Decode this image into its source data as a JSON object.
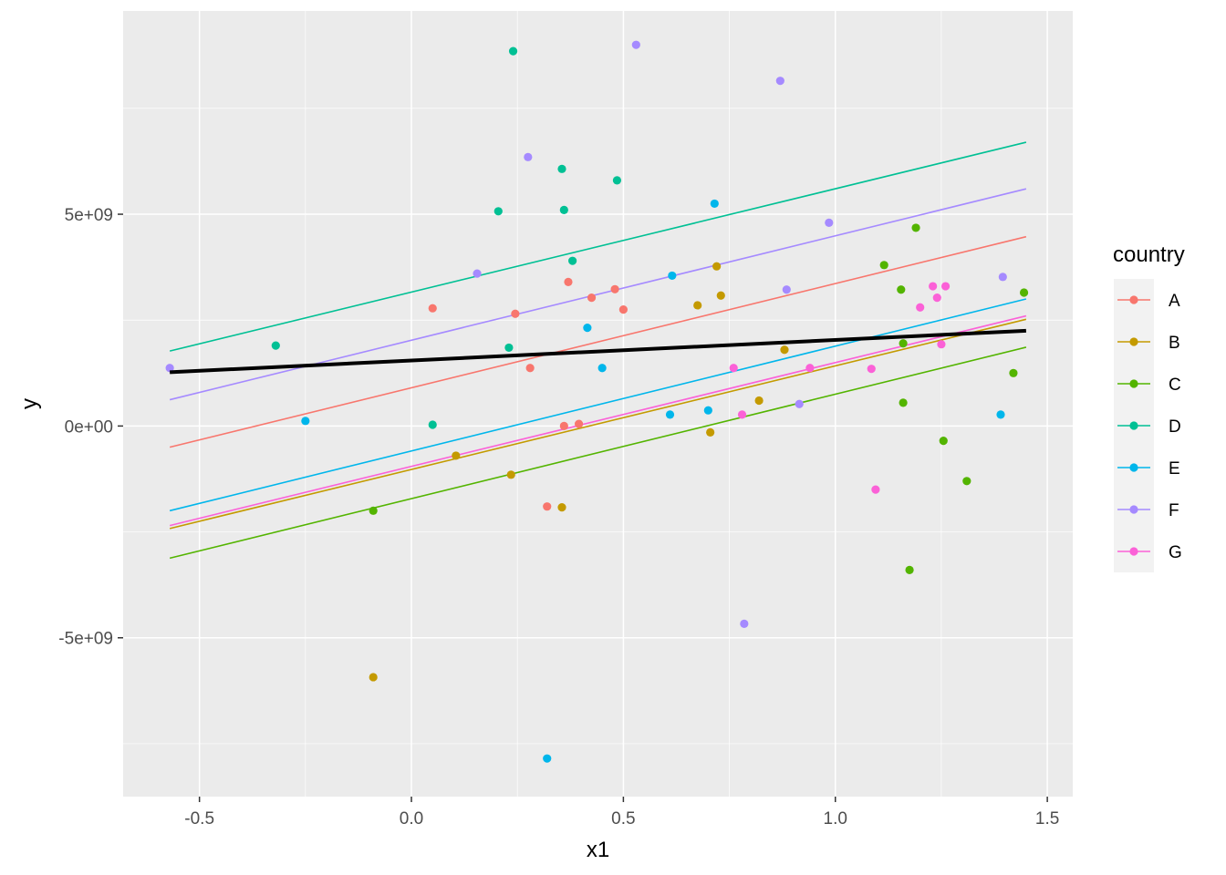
{
  "chart_data": {
    "type": "scatter",
    "xlabel": "x1",
    "ylabel": "y",
    "xlim": [
      -0.68,
      1.56
    ],
    "ylim": [
      -8750000000.0,
      9800000000.0
    ],
    "x_ticks": [
      -0.5,
      0.0,
      0.5,
      1.0,
      1.5
    ],
    "x_tick_labels": [
      "-0.5",
      "0.0",
      "0.5",
      "1.0",
      "1.5"
    ],
    "y_ticks": [
      -5000000000.0,
      0,
      5000000000.0
    ],
    "y_tick_labels": [
      "-5e+09",
      "0e+00",
      "5e+09"
    ],
    "grid": true,
    "legend": {
      "title": "country",
      "placement": "right"
    },
    "series": [
      {
        "name": "A",
        "color": "#F8766D",
        "points": [
          [
            0.05,
            2780000000.0
          ],
          [
            0.245,
            2650000000.0
          ],
          [
            0.28,
            1370000000.0
          ],
          [
            0.32,
            -1900000000.0
          ],
          [
            0.36,
            0.0
          ],
          [
            0.37,
            3400000000.0
          ],
          [
            0.395,
            50000000.0
          ],
          [
            0.425,
            3030000000.0
          ],
          [
            0.48,
            3230000000.0
          ],
          [
            0.5,
            2750000000.0
          ]
        ],
        "fit": [
          [
            -0.57,
            -500000000.0
          ],
          [
            1.45,
            4470000000.0
          ]
        ]
      },
      {
        "name": "B",
        "color": "#C49A00",
        "points": [
          [
            -0.09,
            -5930000000.0
          ],
          [
            0.105,
            -700000000.0
          ],
          [
            0.235,
            -1150000000.0
          ],
          [
            0.355,
            -1920000000.0
          ],
          [
            0.675,
            2850000000.0
          ],
          [
            0.705,
            -150000000.0
          ],
          [
            0.72,
            3770000000.0
          ],
          [
            0.73,
            3080000000.0
          ],
          [
            0.82,
            600000000.0
          ],
          [
            0.88,
            1800000000.0
          ]
        ],
        "fit": [
          [
            -0.57,
            -2420000000.0
          ],
          [
            1.45,
            2520000000.0
          ]
        ]
      },
      {
        "name": "C",
        "color": "#53B400",
        "points": [
          [
            -0.09,
            -2000000000.0
          ],
          [
            1.115,
            3800000000.0
          ],
          [
            1.155,
            3220000000.0
          ],
          [
            1.16,
            1950000000.0
          ],
          [
            1.16,
            550000000.0
          ],
          [
            1.175,
            -3400000000.0
          ],
          [
            1.19,
            4680000000.0
          ],
          [
            1.255,
            -350000000.0
          ],
          [
            1.31,
            -1300000000.0
          ],
          [
            1.42,
            1250000000.0
          ],
          [
            1.445,
            3150000000.0
          ]
        ],
        "fit": [
          [
            -0.57,
            -3120000000.0
          ],
          [
            1.45,
            1860000000.0
          ]
        ]
      },
      {
        "name": "D",
        "color": "#00C094",
        "points": [
          [
            -0.32,
            1900000000.0
          ],
          [
            0.05,
            30000000.0
          ],
          [
            0.205,
            5070000000.0
          ],
          [
            0.23,
            1850000000.0
          ],
          [
            0.24,
            8850000000.0
          ],
          [
            0.355,
            6070000000.0
          ],
          [
            0.36,
            5100000000.0
          ],
          [
            0.38,
            3900000000.0
          ],
          [
            0.485,
            5800000000.0
          ]
        ],
        "fit": [
          [
            -0.57,
            1770000000.0
          ],
          [
            1.45,
            6700000000.0
          ]
        ]
      },
      {
        "name": "E",
        "color": "#00B6EB",
        "points": [
          [
            -0.25,
            120000000.0
          ],
          [
            0.32,
            -7850000000.0
          ],
          [
            0.415,
            2320000000.0
          ],
          [
            0.45,
            1370000000.0
          ],
          [
            0.61,
            270000000.0
          ],
          [
            0.615,
            3550000000.0
          ],
          [
            0.7,
            370000000.0
          ],
          [
            0.715,
            5250000000.0
          ],
          [
            1.39,
            270000000.0
          ]
        ],
        "fit": [
          [
            -0.57,
            -2000000000.0
          ],
          [
            1.45,
            3000000000.0
          ]
        ]
      },
      {
        "name": "F",
        "color": "#A58AFF",
        "points": [
          [
            -0.57,
            1370000000.0
          ],
          [
            0.155,
            3600000000.0
          ],
          [
            0.275,
            6350000000.0
          ],
          [
            0.53,
            9000000000.0
          ],
          [
            0.785,
            -4670000000.0
          ],
          [
            0.87,
            8150000000.0
          ],
          [
            0.885,
            3220000000.0
          ],
          [
            0.915,
            520000000.0
          ],
          [
            0.985,
            4800000000.0
          ],
          [
            1.395,
            3520000000.0
          ]
        ],
        "fit": [
          [
            -0.57,
            620000000.0
          ],
          [
            1.45,
            5600000000.0
          ]
        ]
      },
      {
        "name": "G",
        "color": "#FB61D7",
        "points": [
          [
            0.76,
            1370000000.0
          ],
          [
            0.78,
            270000000.0
          ],
          [
            0.94,
            1370000000.0
          ],
          [
            1.085,
            1350000000.0
          ],
          [
            1.095,
            -1500000000.0
          ],
          [
            1.2,
            2800000000.0
          ],
          [
            1.23,
            3300000000.0
          ],
          [
            1.24,
            3030000000.0
          ],
          [
            1.25,
            1930000000.0
          ],
          [
            1.26,
            3300000000.0
          ]
        ],
        "fit": [
          [
            -0.57,
            -2350000000.0
          ],
          [
            1.45,
            2600000000.0
          ]
        ]
      }
    ],
    "overall_fit": {
      "color": "#000000",
      "line": [
        [
          -0.57,
          1270000000.0
        ],
        [
          1.45,
          2250000000.0
        ]
      ]
    }
  }
}
